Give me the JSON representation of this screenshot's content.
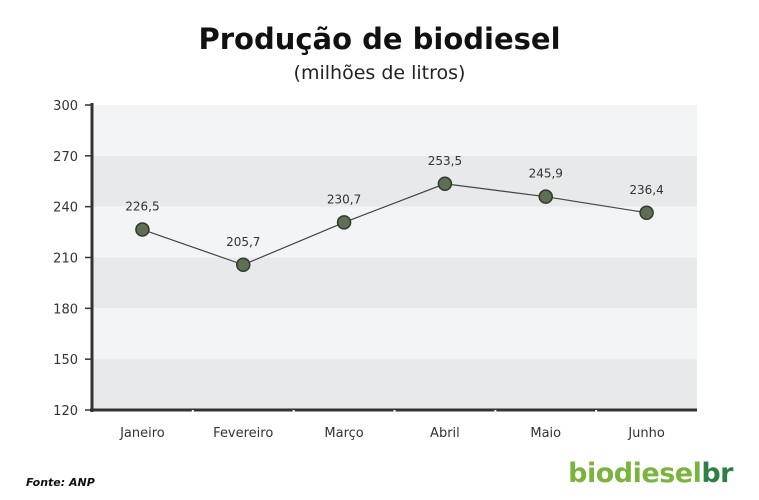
{
  "title": "Produção de biodiesel",
  "subtitle": "(milhões de litros)",
  "source": "Fonte: ANP",
  "logo": {
    "part1": "biodiesel",
    "part2": "br"
  },
  "colors": {
    "marker_fill": "#5e6f55",
    "marker_stroke": "#2f3a2a",
    "line": "#444444",
    "band_light": "#f3f4f6",
    "band_dark": "#e8e9eb",
    "axis": "#333333"
  },
  "chart_data": {
    "type": "line",
    "title": "Produção de biodiesel",
    "subtitle": "(milhões de litros)",
    "categories": [
      "Janeiro",
      "Fevereiro",
      "Março",
      "Abril",
      "Maio",
      "Junho"
    ],
    "values": [
      226.5,
      205.7,
      230.7,
      253.5,
      245.9,
      236.4
    ],
    "data_labels": [
      "226,5",
      "205,7",
      "230,7",
      "253,5",
      "245,9",
      "236,4"
    ],
    "y_ticks": [
      "120",
      "150",
      "180",
      "210",
      "240",
      "270",
      "300"
    ],
    "ylim": [
      120,
      300
    ],
    "legend": "none",
    "grid": "alternating horizontal bands"
  }
}
